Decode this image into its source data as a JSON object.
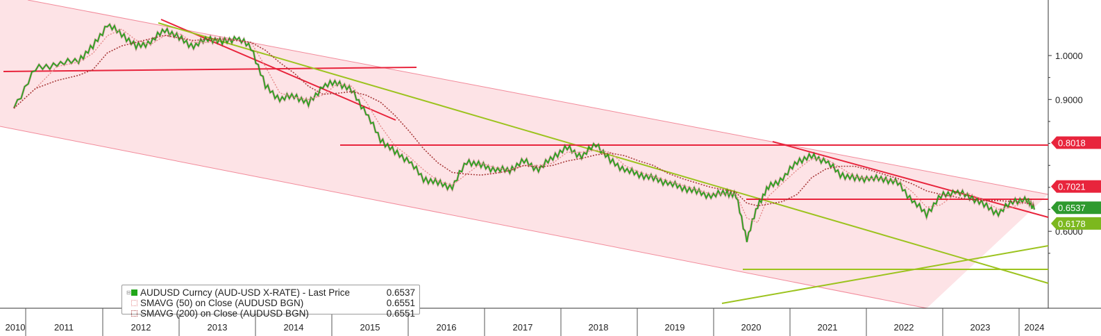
{
  "chart_data": {
    "type": "line",
    "title": "",
    "x_ticks": [
      "2010",
      "2011",
      "2012",
      "2013",
      "2014",
      "2015",
      "2016",
      "2017",
      "2018",
      "2019",
      "2020",
      "2021",
      "2022",
      "2023",
      "2024"
    ],
    "y_ticks": [
      "1.0000",
      "0.9000",
      "0.6000"
    ],
    "ylim": [
      0.52,
      1.12
    ],
    "series": [
      {
        "name": "AUDUSD Curncy (AUD-USD X-RATE) - Last Price",
        "last_value": "0.6537",
        "color": "#22a61a",
        "x": [
          2010.0,
          2010.3,
          2010.6,
          2010.9,
          2011.1,
          2011.3,
          2011.5,
          2011.7,
          2011.9,
          2012.1,
          2012.3,
          2012.5,
          2012.7,
          2012.9,
          2013.1,
          2013.3,
          2013.5,
          2013.7,
          2013.9,
          2014.1,
          2014.3,
          2014.5,
          2014.7,
          2014.9,
          2015.1,
          2015.3,
          2015.5,
          2015.7,
          2015.9,
          2016.1,
          2016.3,
          2016.5,
          2016.7,
          2016.9,
          2017.1,
          2017.3,
          2017.5,
          2017.7,
          2017.9,
          2018.1,
          2018.3,
          2018.5,
          2018.7,
          2018.9,
          2019.1,
          2019.3,
          2019.5,
          2019.7,
          2019.9,
          2020.05,
          2020.2,
          2020.35,
          2020.5,
          2020.7,
          2020.9,
          2021.1,
          2021.3,
          2021.5,
          2021.7,
          2021.9,
          2022.1,
          2022.3,
          2022.5,
          2022.7,
          2022.9,
          2023.1,
          2023.3,
          2023.5,
          2023.7,
          2023.9,
          2024.1,
          2024.2
        ],
        "values": [
          0.88,
          0.97,
          0.98,
          0.99,
          1.02,
          1.07,
          1.05,
          1.02,
          1.03,
          1.06,
          1.04,
          1.02,
          1.04,
          1.03,
          1.04,
          1.02,
          0.93,
          0.9,
          0.91,
          0.89,
          0.93,
          0.94,
          0.92,
          0.87,
          0.81,
          0.78,
          0.76,
          0.72,
          0.71,
          0.7,
          0.76,
          0.75,
          0.74,
          0.74,
          0.76,
          0.74,
          0.77,
          0.79,
          0.77,
          0.8,
          0.76,
          0.74,
          0.73,
          0.72,
          0.71,
          0.7,
          0.69,
          0.68,
          0.69,
          0.68,
          0.58,
          0.66,
          0.7,
          0.72,
          0.76,
          0.77,
          0.76,
          0.73,
          0.72,
          0.72,
          0.72,
          0.71,
          0.67,
          0.64,
          0.68,
          0.69,
          0.68,
          0.66,
          0.64,
          0.67,
          0.67,
          0.6537
        ]
      },
      {
        "name": "SMAVG (50)  on Close (AUDUSD BGN)",
        "last_value": "0.6551",
        "color": "#e58a8a"
      },
      {
        "name": "SMAVG (200)  on Close (AUDUSD BGN)",
        "last_value": "0.6551",
        "color": "#a83a3a"
      }
    ],
    "price_labels": [
      {
        "value": 0.8018,
        "text": "0.8018",
        "color": "#e8243c"
      },
      {
        "value": 0.7021,
        "text": "0.7021",
        "color": "#e8243c"
      },
      {
        "value": 0.6537,
        "text": "0.6537",
        "color": "#2e9a2e"
      },
      {
        "value": 0.6178,
        "text": "0.6178",
        "color": "#7cb81e"
      }
    ],
    "legend_placement": "bottom-left",
    "grid": false
  },
  "legend": {
    "rows": [
      {
        "name": "AUDUSD Curncy (AUD-USD X-RATE) - Last Price",
        "value": "0.6537",
        "swatch": "#22a61a"
      },
      {
        "name": "SMAVG (50)  on Close (AUDUSD BGN)",
        "value": "0.6551",
        "swatch": "#e58a8a"
      },
      {
        "name": "SMAVG (200)  on Close (AUDUSD BGN)",
        "value": "0.6551",
        "swatch": "#a83a3a"
      }
    ]
  }
}
